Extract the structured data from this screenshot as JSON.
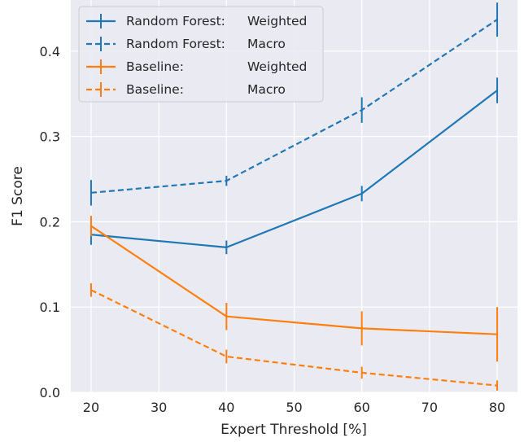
{
  "chart_data": {
    "type": "line",
    "title": "",
    "xlabel": "Expert Threshold [%]",
    "ylabel": "F1 Score",
    "x": [
      20,
      40,
      60,
      80
    ],
    "xlim": [
      17,
      83
    ],
    "ylim": [
      0,
      0.46
    ],
    "xticks": [
      20,
      30,
      40,
      50,
      60,
      70,
      80
    ],
    "yticks": [
      0.0,
      0.1,
      0.2,
      0.3,
      0.4
    ],
    "ytick_labels": [
      "0.0",
      "0.1",
      "0.2",
      "0.3",
      "0.4"
    ],
    "grid": true,
    "legend_position": "top-left",
    "series": [
      {
        "name": "Random Forest: Weighted",
        "legend_parts": [
          "Random Forest:",
          "Weighted"
        ],
        "color": "#1f77b4",
        "dash": "solid",
        "values": [
          0.185,
          0.17,
          0.233,
          0.354
        ],
        "errors": [
          0.012,
          0.008,
          0.009,
          0.015
        ]
      },
      {
        "name": "Random Forest: Macro",
        "legend_parts": [
          "Random Forest:",
          "Macro"
        ],
        "color": "#1f77b4",
        "dash": "dashed",
        "values": [
          0.234,
          0.248,
          0.331,
          0.437
        ],
        "errors": [
          0.015,
          0.006,
          0.015,
          0.02
        ]
      },
      {
        "name": "Baseline: Weighted",
        "legend_parts": [
          "Baseline:",
          "Weighted"
        ],
        "color": "#ff7f0e",
        "dash": "solid",
        "values": [
          0.195,
          0.089,
          0.075,
          0.068
        ],
        "errors": [
          0.012,
          0.016,
          0.02,
          0.032
        ]
      },
      {
        "name": "Baseline: Macro",
        "legend_parts": [
          "Baseline:",
          "Macro"
        ],
        "color": "#ff7f0e",
        "dash": "dashed",
        "values": [
          0.12,
          0.042,
          0.023,
          0.008
        ],
        "errors": [
          0.008,
          0.008,
          0.007,
          0.006
        ]
      }
    ]
  }
}
